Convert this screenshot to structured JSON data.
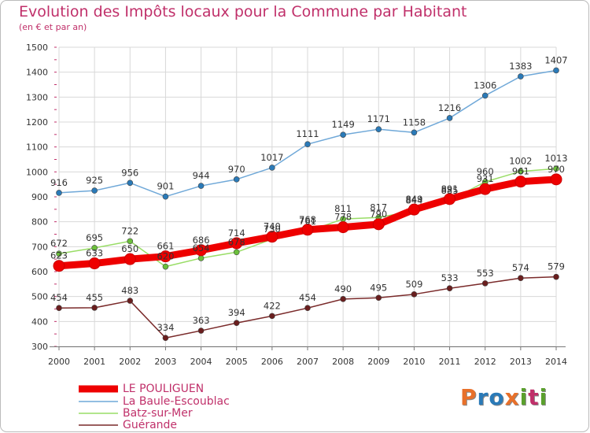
{
  "title": "Evolution des Impôts locaux pour la Commune par Habitant",
  "subtitle": "(en € et par an)",
  "brand": {
    "text": "Proxiti",
    "colors": [
      "#e8702a",
      "#2a7ab8",
      "#2a7ab8",
      "#e8702a",
      "#5aa02c",
      "#c0306a",
      "#5aa02c"
    ]
  },
  "chart_data": {
    "type": "line",
    "title": "Evolution des Impôts locaux pour la Commune par Habitant",
    "subtitle": "(en € et par an)",
    "xlabel": "",
    "ylabel": "",
    "ylim": [
      300,
      1500
    ],
    "yticks": [
      300,
      400,
      500,
      600,
      700,
      800,
      900,
      1000,
      1100,
      1200,
      1300,
      1400,
      1500
    ],
    "grid": true,
    "legend_position": "bottom-left",
    "categories": [
      "2000",
      "2001",
      "2002",
      "2003",
      "2004",
      "2005",
      "2006",
      "2007",
      "2008",
      "2009",
      "2010",
      "2011",
      "2012",
      "2013",
      "2014"
    ],
    "series": [
      {
        "name": "La Baule-Escoublac",
        "color": "#6fa8d8",
        "marker": "#2a7ab8",
        "values": [
          916,
          925,
          956,
          901,
          944,
          970,
          1017,
          1111,
          1149,
          1171,
          1158,
          1216,
          1306,
          1383,
          1407
        ]
      },
      {
        "name": "Batz-sur-Mer",
        "color": "#99dd66",
        "marker": "#6abf3a",
        "values": [
          672,
          695,
          722,
          620,
          654,
          678,
          730,
          761,
          811,
          817,
          844,
          885,
          960,
          1002,
          1013
        ]
      },
      {
        "name": "Guérande",
        "color": "#7a2a2a",
        "marker": "#6a1e1e",
        "values": [
          454,
          455,
          483,
          334,
          363,
          394,
          422,
          454,
          490,
          495,
          509,
          533,
          553,
          574,
          579
        ]
      },
      {
        "name": "LE POULIGUEN",
        "color": "#ee0000",
        "marker": "#ee0000",
        "values": [
          623,
          633,
          650,
          661,
          686,
          714,
          740,
          768,
          778,
          790,
          849,
          891,
          931,
          961,
          970
        ]
      }
    ],
    "legend": [
      "LE POULIGUEN",
      "La Baule-Escoublac",
      "Batz-sur-Mer",
      "Guérande"
    ]
  }
}
